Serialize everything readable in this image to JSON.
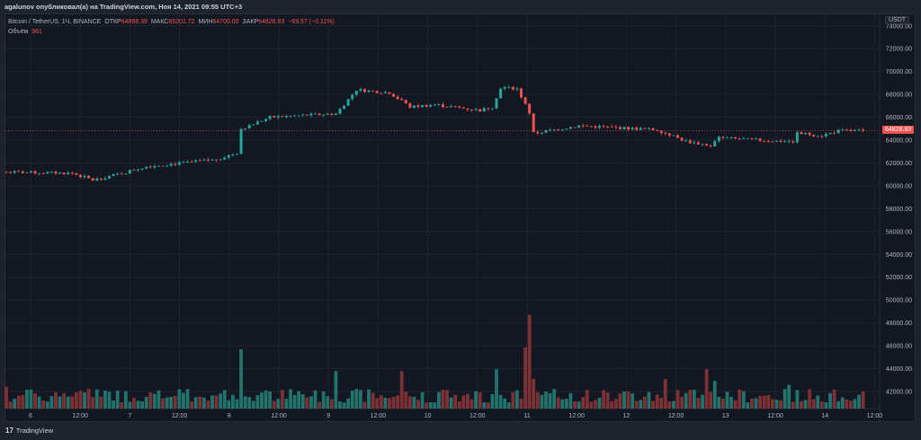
{
  "published": "agalunov опубликовал(а) на TradingView.com, Ноя 14, 2021 09:55 UTC+3",
  "legend": {
    "symbol": "Bitcoin / TetherUS, 1Ч, BINANCE",
    "open_label": "ОТКР",
    "open": "64898.39",
    "high_label": "МАКС",
    "high": "65201.72",
    "low_label": "МИН",
    "low": "64700.00",
    "close_label": "ЗАКР",
    "close": "64828.83",
    "change": "−69.57 (−0.11%)",
    "volume_label": "Объём",
    "volume": "961"
  },
  "currency": "USDT",
  "last_price": "64828.83",
  "footer": {
    "brand": "TradingView",
    "logo_text": "17"
  },
  "colors": {
    "up": "#26a69a",
    "down": "#ef5350",
    "vol_up": "#22736c",
    "vol_down": "#7e3134",
    "grid": "#1f2330",
    "bg": "#131722"
  },
  "chart_data": {
    "type": "candlestick",
    "timeframe": "1H",
    "price_ticks": [
      "74000.00",
      "72000.00",
      "70000.00",
      "68000.00",
      "66000.00",
      "64000.00",
      "62000.00",
      "60000.00",
      "58000.00",
      "56000.00",
      "54000.00",
      "52000.00",
      "50000.00",
      "48000.00",
      "46000.00",
      "44000.00",
      "42000.00"
    ],
    "time_ticks": [
      "6",
      "12:00",
      "7",
      "12:00",
      "8",
      "12:00",
      "9",
      "12:00",
      "10",
      "12:00",
      "11",
      "12:00",
      "12",
      "12:00",
      "13",
      "12:00",
      "14",
      "12:00"
    ],
    "ylim": [
      41000,
      75000
    ],
    "close_keyframes_by_hour": [
      [
        0,
        61200
      ],
      [
        16,
        61100
      ],
      [
        21,
        60500
      ],
      [
        27,
        61000
      ],
      [
        34,
        61700
      ],
      [
        43,
        62000
      ],
      [
        51,
        62300
      ],
      [
        56,
        62900
      ],
      [
        57,
        65000
      ],
      [
        64,
        66000
      ],
      [
        74,
        66200
      ],
      [
        80,
        66300
      ],
      [
        85,
        68400
      ],
      [
        93,
        68150
      ],
      [
        98,
        66900
      ],
      [
        104,
        67100
      ],
      [
        115,
        66600
      ],
      [
        118,
        66900
      ],
      [
        120,
        68600
      ],
      [
        124,
        68500
      ],
      [
        127,
        66400
      ],
      [
        128,
        64600
      ],
      [
        139,
        65250
      ],
      [
        158,
        64900
      ],
      [
        165,
        63900
      ],
      [
        171,
        63500
      ],
      [
        173,
        64200
      ],
      [
        187,
        63900
      ],
      [
        191,
        63900
      ],
      [
        192,
        64600
      ],
      [
        198,
        64400
      ],
      [
        202,
        64800
      ],
      [
        208,
        64830
      ]
    ],
    "volume_spikes_by_hour": [
      [
        0,
        0.22
      ],
      [
        20,
        0.2
      ],
      [
        57,
        0.6
      ],
      [
        80,
        0.38
      ],
      [
        96,
        0.38
      ],
      [
        119,
        0.4
      ],
      [
        126,
        0.62
      ],
      [
        127,
        0.95
      ],
      [
        128,
        0.3
      ],
      [
        160,
        0.3
      ],
      [
        170,
        0.4
      ],
      [
        172,
        0.28
      ],
      [
        190,
        0.24
      ]
    ]
  }
}
